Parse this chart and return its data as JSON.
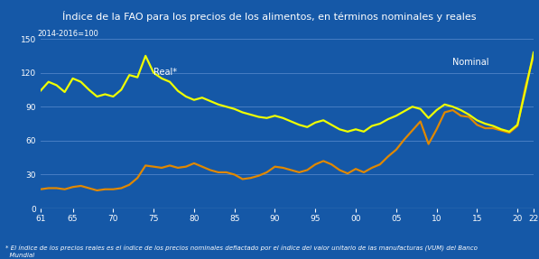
{
  "title": "Índice de la FAO para los precios de los alimentos, en términos nominales y reales",
  "ylabel": "2014-2016=100",
  "footnote": "* El índice de los precios reales es el índice de los precios nominales deflactado por el índice del valor unitario de las manufacturas (VUM) del Banco\n  Mundial",
  "background_color": "#1558a7",
  "title_background": "#1a2e6e",
  "plot_background": "#1558a7",
  "grid_color": "#5588cc",
  "text_color": "#ffffff",
  "real_color": "#eeff00",
  "nominal_color": "#e08800",
  "ylim": [
    0,
    150
  ],
  "yticks": [
    0,
    30,
    60,
    90,
    120,
    150
  ],
  "xtick_labels": [
    "61",
    "65",
    "70",
    "75",
    "80",
    "85",
    "90",
    "95",
    "00",
    "05",
    "10",
    "15",
    "20",
    "22"
  ],
  "xtick_positions": [
    1961,
    1965,
    1970,
    1975,
    1980,
    1985,
    1990,
    1995,
    2000,
    2005,
    2010,
    2015,
    2020,
    2022
  ],
  "real_label": "Real*",
  "nominal_label": "Nominal",
  "real_x": [
    1961,
    1962,
    1963,
    1964,
    1965,
    1966,
    1967,
    1968,
    1969,
    1970,
    1971,
    1972,
    1973,
    1974,
    1975,
    1976,
    1977,
    1978,
    1979,
    1980,
    1981,
    1982,
    1983,
    1984,
    1985,
    1986,
    1987,
    1988,
    1989,
    1990,
    1991,
    1992,
    1993,
    1994,
    1995,
    1996,
    1997,
    1998,
    1999,
    2000,
    2001,
    2002,
    2003,
    2004,
    2005,
    2006,
    2007,
    2008,
    2009,
    2010,
    2011,
    2012,
    2013,
    2014,
    2015,
    2016,
    2017,
    2018,
    2019,
    2020,
    2021,
    2022
  ],
  "real_y": [
    104,
    112,
    109,
    103,
    115,
    112,
    105,
    99,
    101,
    99,
    105,
    118,
    116,
    135,
    120,
    115,
    112,
    104,
    99,
    96,
    98,
    95,
    92,
    90,
    88,
    85,
    83,
    81,
    80,
    82,
    80,
    77,
    74,
    72,
    76,
    78,
    74,
    70,
    68,
    70,
    68,
    73,
    75,
    79,
    82,
    86,
    90,
    88,
    80,
    87,
    92,
    90,
    87,
    83,
    78,
    75,
    73,
    70,
    68,
    74,
    105,
    138
  ],
  "nominal_y": [
    17,
    18,
    18,
    17,
    19,
    20,
    18,
    16,
    17,
    17,
    18,
    21,
    27,
    38,
    37,
    36,
    38,
    36,
    37,
    40,
    37,
    34,
    32,
    32,
    30,
    26,
    27,
    29,
    32,
    37,
    36,
    34,
    32,
    34,
    39,
    42,
    39,
    34,
    31,
    35,
    32,
    36,
    39,
    46,
    52,
    61,
    69,
    77,
    57,
    70,
    85,
    87,
    82,
    81,
    74,
    71,
    71,
    69,
    67,
    73,
    108,
    135
  ],
  "xlim_start": 1961,
  "xlim_end": 2022
}
